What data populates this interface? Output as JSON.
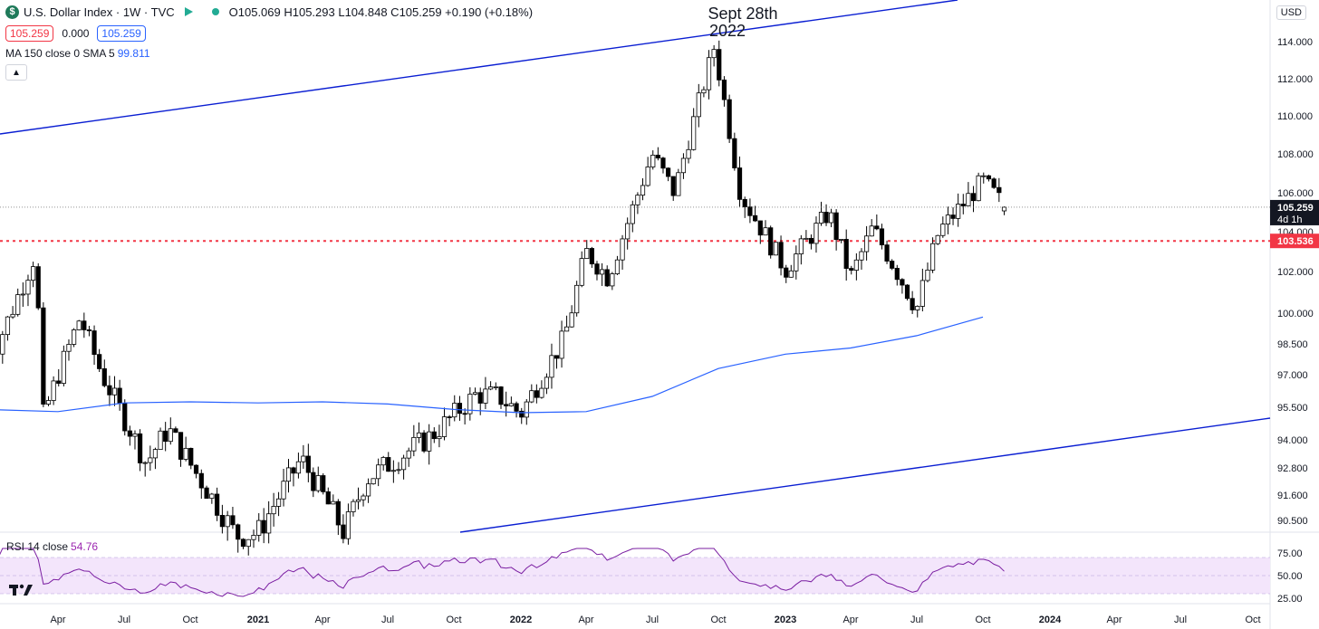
{
  "legend": {
    "symbol_icon": "dollar-coin-icon",
    "title": "U.S. Dollar Index · 1W · TVC",
    "ohlc": "O105.069  H105.293  L104.848  C105.259  +0.190 (+0.18%)",
    "bid": "105.259",
    "spread": "0.000",
    "ask": "105.259",
    "ma_label": "MA 150 close 0 SMA 5",
    "ma_value": "99.811",
    "collapse_icon": "chevron-up-icon"
  },
  "rsi_legend": {
    "label": "RSI 14 close",
    "value": "54.76"
  },
  "currency": "USD",
  "colors": {
    "up": "#ffffff",
    "down": "#000000",
    "ma": "#2962ff",
    "channel": "#0a1ed2",
    "support": "#f23645",
    "rsi": "#7b1fa2",
    "rsi_band": "#f3e5fb"
  },
  "chart_data": [
    {
      "type": "candlestick",
      "title": "",
      "annotation": [
        "Sept 28th",
        "2022"
      ],
      "y_ticks": [
        "114.000",
        "112.000",
        "110.000",
        "108.000",
        "106.000",
        "104.000",
        "102.000",
        "100.000",
        "98.500",
        "97.000",
        "95.500",
        "94.000",
        "92.800",
        "91.600",
        "90.500"
      ],
      "y_tick_values": [
        114,
        112,
        110,
        108,
        106,
        104,
        102,
        100,
        98.5,
        97,
        95.5,
        94,
        92.8,
        91.6,
        90.5
      ],
      "x_ticks": [
        "Apr",
        "Jul",
        "Oct",
        "2021",
        "Apr",
        "Jul",
        "Oct",
        "2022",
        "Apr",
        "Jul",
        "Oct",
        "2023",
        "Apr",
        "Jul",
        "Oct",
        "2024",
        "Apr",
        "Jul",
        "Oct"
      ],
      "x_tick_values": [
        "2020-04",
        "2020-07",
        "2020-10",
        "2021-01",
        "2021-04",
        "2021-07",
        "2021-10",
        "2022-01",
        "2022-04",
        "2022-07",
        "2022-10",
        "2023-01",
        "2023-04",
        "2023-07",
        "2023-10",
        "2024-01",
        "2024-04",
        "2024-07",
        "2024-10"
      ],
      "current_price": "105.259",
      "countdown": "4d 1h",
      "support_level": "103.536",
      "support_value": 103.536,
      "key_points": [
        {
          "date": "2020-01",
          "close": 97.8
        },
        {
          "date": "2020-03",
          "close": 102.9
        },
        {
          "date": "2020-03-10",
          "close": 95.0
        },
        {
          "date": "2020-05",
          "close": 99.8
        },
        {
          "date": "2020-06",
          "close": 97.0
        },
        {
          "date": "2020-08",
          "close": 93.0
        },
        {
          "date": "2020-09",
          "close": 94.5
        },
        {
          "date": "2020-12",
          "close": 89.9
        },
        {
          "date": "2021-01",
          "close": 90.0
        },
        {
          "date": "2021-03",
          "close": 93.2
        },
        {
          "date": "2021-05",
          "close": 90.0
        },
        {
          "date": "2021-06",
          "close": 92.3
        },
        {
          "date": "2021-09",
          "close": 94.2
        },
        {
          "date": "2021-11",
          "close": 96.1
        },
        {
          "date": "2021-12",
          "close": 96.0
        },
        {
          "date": "2022-01",
          "close": 95.2
        },
        {
          "date": "2022-03",
          "close": 98.8
        },
        {
          "date": "2022-04",
          "close": 103.0
        },
        {
          "date": "2022-05",
          "close": 101.7
        },
        {
          "date": "2022-07",
          "close": 108.0
        },
        {
          "date": "2022-08",
          "close": 106.0
        },
        {
          "date": "2022-09-28",
          "close": 114.1
        },
        {
          "date": "2022-10",
          "close": 112.5
        },
        {
          "date": "2022-11",
          "close": 105.9
        },
        {
          "date": "2023-01",
          "close": 102.1
        },
        {
          "date": "2023-03",
          "close": 105.0
        },
        {
          "date": "2023-04",
          "close": 101.7
        },
        {
          "date": "2023-05",
          "close": 104.2
        },
        {
          "date": "2023-07",
          "close": 100.2
        },
        {
          "date": "2023-08",
          "close": 104.0
        },
        {
          "date": "2023-10",
          "close": 106.6
        },
        {
          "date": "2023-11",
          "close": 105.259
        }
      ],
      "ma150": {
        "name": "MA 150 close 0 SMA 5",
        "last": 99.811
      }
    },
    {
      "type": "line",
      "title": "",
      "y_ticks": [
        "75.00",
        "50.00",
        "25.00"
      ],
      "y_tick_values": [
        75,
        50,
        25
      ],
      "band": [
        30,
        70
      ],
      "series": [
        {
          "name": "RSI 14 close",
          "last": 54.76
        }
      ]
    }
  ]
}
